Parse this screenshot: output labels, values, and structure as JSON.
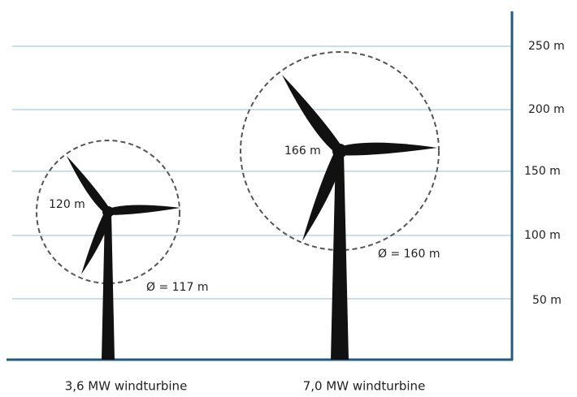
{
  "axis": {
    "ticks": [
      "250 m",
      "200 m",
      "150 m",
      "100 m",
      "50 m"
    ]
  },
  "turbines": [
    {
      "hub_label": "120 m",
      "diameter_label": "Ø = 117 m",
      "name": "3,6 MW windturbine"
    },
    {
      "hub_label": "166 m",
      "diameter_label": "Ø = 160 m",
      "name": "7,0 MW windturbine"
    }
  ]
}
